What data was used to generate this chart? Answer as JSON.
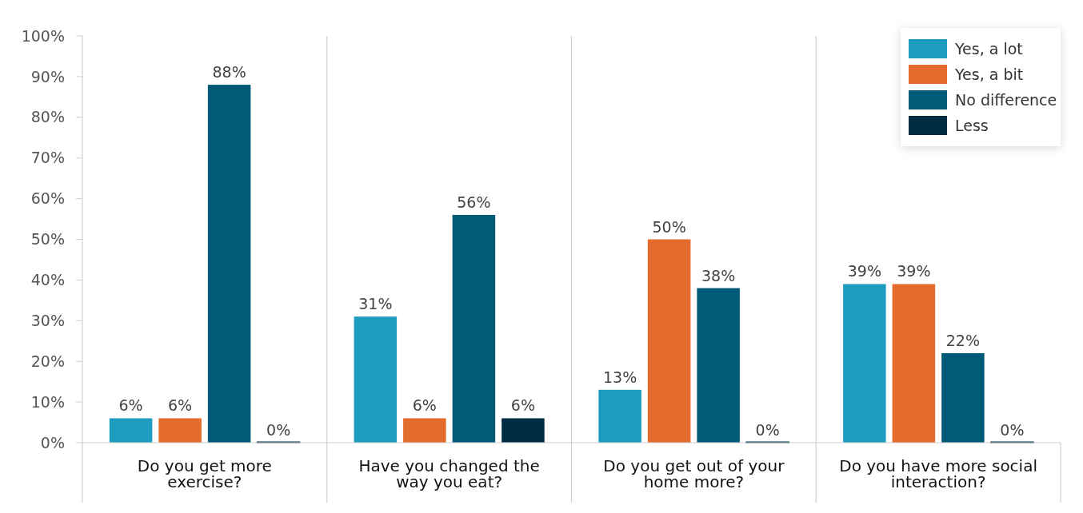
{
  "chart_data": {
    "type": "bar",
    "categories": [
      "Do you get more exercise?",
      "Have you changed the way you eat?",
      "Do you get out of your home more?",
      "Do you have more social interaction?"
    ],
    "series": [
      {
        "name": "Yes, a lot",
        "color": "#1e9cbf",
        "values": [
          6,
          31,
          13,
          39
        ],
        "value_labels": [
          "6%",
          "31%",
          "13%",
          "39%"
        ]
      },
      {
        "name": "Yes, a bit",
        "color": "#e36b2c",
        "values": [
          6,
          6,
          50,
          39
        ],
        "value_labels": [
          "6%",
          "6%",
          "50%",
          "39%"
        ]
      },
      {
        "name": "No difference",
        "color": "#005a78",
        "values": [
          88,
          56,
          38,
          22
        ],
        "value_labels": [
          "88%",
          "56%",
          "38%",
          "22%"
        ]
      },
      {
        "name": "Less",
        "color": "#002c44",
        "values": [
          0,
          6,
          0,
          0
        ],
        "value_labels": [
          "0%",
          "6%",
          "0%",
          "0%"
        ]
      }
    ],
    "ylim": [
      0,
      100
    ],
    "yticks": [
      {
        "value": 0,
        "label": "0%"
      },
      {
        "value": 10,
        "label": "10%"
      },
      {
        "value": 20,
        "label": "20%"
      },
      {
        "value": 30,
        "label": "30%"
      },
      {
        "value": 40,
        "label": "40%"
      },
      {
        "value": 50,
        "label": "50%"
      },
      {
        "value": 60,
        "label": "60%"
      },
      {
        "value": 70,
        "label": "70%"
      },
      {
        "value": 80,
        "label": "80%"
      },
      {
        "value": 90,
        "label": "90%"
      },
      {
        "value": 100,
        "label": "100%"
      }
    ],
    "legend": "top right"
  }
}
